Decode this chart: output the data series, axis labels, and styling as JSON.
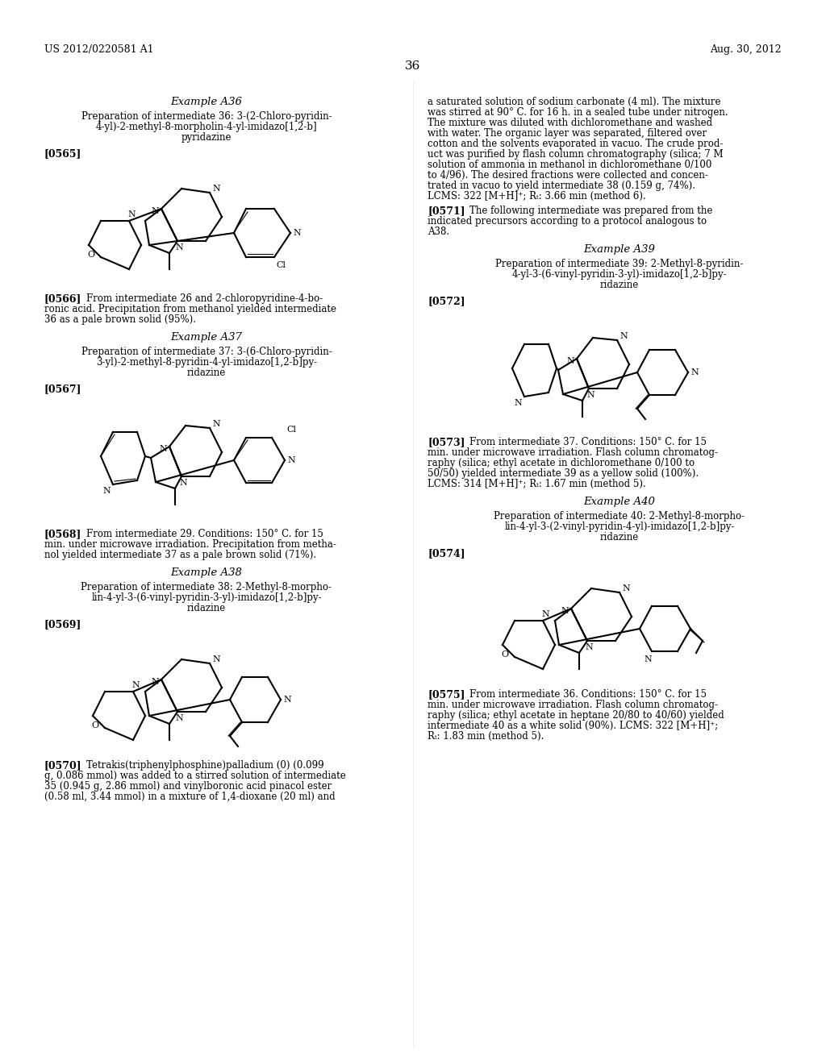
{
  "bg_color": "#ffffff",
  "header_left": "US 2012/0220581 A1",
  "header_right": "Aug. 30, 2012",
  "page_number": "36",
  "left_column": {
    "sections": [
      {
        "type": "example_title",
        "text": "Example A36"
      },
      {
        "type": "subtitle",
        "text": "Preparation of intermediate 36: 3-(2-Chloro-pyridin-\n4-yl)-2-methyl-8-morpholin-4-yl-imidazo[1,2-b]\npyridazine"
      },
      {
        "type": "paragraph_label",
        "text": "[0565]"
      },
      {
        "type": "structure",
        "id": "struct_36"
      },
      {
        "type": "paragraph",
        "label": "[0566]",
        "text": "From intermediate 26 and 2-chloropyridine-4-bo-\nronic acid. Precipitation from methanol yielded intermediate\n36 as a pale brown solid (95%)."
      },
      {
        "type": "example_title",
        "text": "Example A37"
      },
      {
        "type": "subtitle",
        "text": "Preparation of intermediate 37: 3-(6-Chloro-pyridin-\n3-yl)-2-methyl-8-pyridin-4-yl-imidazo[1,2-b]py-\nridazine"
      },
      {
        "type": "paragraph_label",
        "text": "[0567]"
      },
      {
        "type": "structure",
        "id": "struct_37"
      },
      {
        "type": "paragraph",
        "label": "[0568]",
        "text": "From intermediate 29. Conditions: 150° C. for 15\nmin. under microwave irradiation. Precipitation from metha-\nnol yielded intermediate 37 as a pale brown solid (71%)."
      },
      {
        "type": "example_title",
        "text": "Example A38"
      },
      {
        "type": "subtitle",
        "text": "Preparation of intermediate 38: 2-Methyl-8-morpho-\nlin-4-yl-3-(6-vinyl-pyridin-3-yl)-imidazo[1,2-b]py-\nridazine"
      },
      {
        "type": "paragraph_label",
        "text": "[0569]"
      },
      {
        "type": "structure",
        "id": "struct_38"
      },
      {
        "type": "paragraph",
        "label": "[0570]",
        "text": "Tetrakis(triphenylphosphine)palladium (0) (0.099\ng, 0.086 mmol) was added to a stirred solution of intermediate\n35 (0.945 g, 2.86 mmol) and vinylboronic acid pinacol ester\n(0.58 ml, 3.44 mmol) in a mixture of 1,4-dioxane (20 ml) and"
      }
    ]
  },
  "right_column": {
    "sections": [
      {
        "type": "paragraph",
        "text": "a saturated solution of sodium carbonate (4 ml). The mixture\nwas stirred at 90° C. for 16 h. in a sealed tube under nitrogen.\nThe mixture was diluted with dichloromethane and washed\nwith water. The organic layer was separated, filtered over\ncotton and the solvents evaporated in vacuo. The crude prod-\nuct was purified by flash column chromatography (silica; 7 M\nsolution of ammonia in methanol in dichloromethane 0/100\nto 4/96). The desired fractions were collected and concen-\ntrated in vacuo to yield intermediate 38 (0.159 g, 74%).\nLCMS: 322 [M+H]⁺; Rₜ: 3.66 min (method 6)."
      },
      {
        "type": "paragraph",
        "label": "[0571]",
        "text": "The following intermediate was prepared from the\nindicated precursors according to a protocol analogous to\nA38."
      },
      {
        "type": "example_title",
        "text": "Example A39"
      },
      {
        "type": "subtitle",
        "text": "Preparation of intermediate 39: 2-Methyl-8-pyridin-\n4-yl-3-(6-vinyl-pyridin-3-yl)-imidazo[1,2-b]py-\nridazine"
      },
      {
        "type": "paragraph_label",
        "text": "[0572]"
      },
      {
        "type": "structure",
        "id": "struct_39"
      },
      {
        "type": "paragraph",
        "label": "[0573]",
        "text": "From intermediate 37. Conditions: 150° C. for 15\nmin. under microwave irradiation. Flash column chromatog-\nraphy (silica; ethyl acetate in dichloromethane 0/100 to\n50/50) yielded intermediate 39 as a yellow solid (100%).\nLCMS: 314 [M+H]⁺; Rₜ: 1.67 min (method 5)."
      },
      {
        "type": "example_title",
        "text": "Example A40"
      },
      {
        "type": "subtitle",
        "text": "Preparation of intermediate 40: 2-Methyl-8-morpho-\nlin-4-yl-3-(2-vinyl-pyridin-4-yl)-imidazo[1,2-b]py-\nridazine"
      },
      {
        "type": "paragraph_label",
        "text": "[0574]"
      },
      {
        "type": "structure",
        "id": "struct_40"
      },
      {
        "type": "paragraph",
        "label": "[0575]",
        "text": "From intermediate 36. Conditions: 150° C. for 15\nmin. under microwave irradiation. Flash column chromatog-\nraphy (silica; ethyl acetate in heptane 20/80 to 40/60) yielded\nintermediate 40 as a white solid (90%). LCMS: 322 [M+H]⁺;\nRₜ: 1.83 min (method 5)."
      }
    ]
  }
}
